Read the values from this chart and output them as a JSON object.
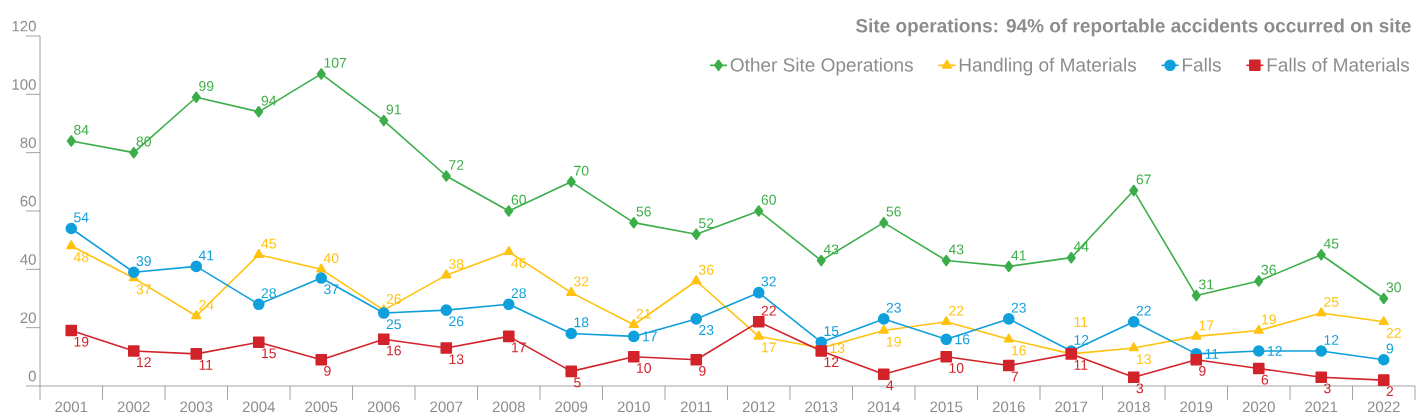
{
  "chart_data": {
    "type": "line",
    "title": "Site operations: 94% of reportable accidents occurred on site",
    "categories": [
      "2001",
      "2002",
      "2003",
      "2004",
      "2005",
      "2006",
      "2007",
      "2008",
      "2009",
      "2010",
      "2011",
      "2012",
      "2013",
      "2014",
      "2015",
      "2016",
      "2017",
      "2018",
      "2019",
      "2020",
      "2021",
      "2022"
    ],
    "series": [
      {
        "name": "Other Site Operations",
        "color": "#3cae49",
        "marker": "diamond",
        "values": [
          84,
          80,
          99,
          94,
          107,
          91,
          72,
          60,
          70,
          56,
          52,
          60,
          43,
          56,
          43,
          41,
          44,
          67,
          31,
          36,
          45,
          30
        ]
      },
      {
        "name": "Handling of Materials",
        "color": "#ffc20e",
        "marker": "triangle",
        "values": [
          48,
          37,
          24,
          45,
          40,
          26,
          38,
          46,
          32,
          21,
          36,
          17,
          13,
          19,
          22,
          16,
          11,
          13,
          17,
          19,
          25,
          22
        ]
      },
      {
        "name": "Falls",
        "color": "#0fa0dc",
        "marker": "circle",
        "values": [
          54,
          39,
          41,
          28,
          37,
          25,
          26,
          28,
          18,
          17,
          23,
          32,
          15,
          23,
          16,
          23,
          12,
          22,
          11,
          12,
          12,
          9
        ]
      },
      {
        "name": "Falls of Materials",
        "color": "#d2232a",
        "marker": "square",
        "values": [
          19,
          12,
          11,
          15,
          9,
          16,
          13,
          17,
          5,
          10,
          9,
          22,
          12,
          4,
          10,
          7,
          11,
          3,
          9,
          6,
          3,
          2
        ]
      }
    ],
    "ylim": [
      0,
      120
    ],
    "yticks": [
      0,
      20,
      40,
      60,
      80,
      100,
      120
    ],
    "data_labels": true,
    "legend": "top right",
    "grid": false
  }
}
